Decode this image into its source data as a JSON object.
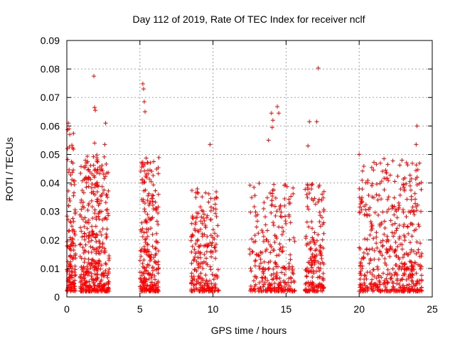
{
  "chart_data": {
    "type": "scatter",
    "title": "Day 112 of 2019, Rate Of TEC Index for receiver nclf",
    "xlabel": "GPS time / hours",
    "ylabel": "ROTI / TECUs",
    "xlim": [
      0,
      25
    ],
    "ylim": [
      0,
      0.09
    ],
    "xticks": [
      0,
      5,
      10,
      15,
      20,
      25
    ],
    "xtick_labels": [
      "0",
      "5",
      "10",
      "15",
      "20",
      "25"
    ],
    "yticks": [
      0,
      0.01,
      0.02,
      0.03,
      0.04,
      0.05,
      0.06,
      0.07,
      0.08,
      0.09
    ],
    "ytick_labels": [
      "0",
      "0.01",
      "0.02",
      "0.03",
      "0.04",
      "0.05",
      "0.06",
      "0.07",
      "0.08",
      "0.09"
    ],
    "grid": true,
    "marker": "+",
    "color": "#ff0000",
    "clusters": [
      {
        "x_start": 0.0,
        "x_end": 0.6,
        "y_max": 0.06,
        "density": 140
      },
      {
        "x_start": 0.9,
        "x_end": 2.9,
        "y_max": 0.05,
        "density": 420
      },
      {
        "x_start": 5.0,
        "x_end": 6.3,
        "y_max": 0.05,
        "density": 260
      },
      {
        "x_start": 8.5,
        "x_end": 10.4,
        "y_max": 0.04,
        "density": 230
      },
      {
        "x_start": 12.5,
        "x_end": 15.6,
        "y_max": 0.04,
        "density": 280
      },
      {
        "x_start": 16.3,
        "x_end": 17.6,
        "y_max": 0.04,
        "density": 180
      },
      {
        "x_start": 20.0,
        "x_end": 24.3,
        "y_max": 0.048,
        "density": 520
      }
    ],
    "points": [
      {
        "x": 1.85,
        "y": 0.0775
      },
      {
        "x": 17.2,
        "y": 0.0803
      },
      {
        "x": 5.2,
        "y": 0.0748
      },
      {
        "x": 5.25,
        "y": 0.073
      },
      {
        "x": 5.3,
        "y": 0.0685
      },
      {
        "x": 5.35,
        "y": 0.065
      },
      {
        "x": 1.9,
        "y": 0.0665
      },
      {
        "x": 1.95,
        "y": 0.0655
      },
      {
        "x": 2.65,
        "y": 0.061
      },
      {
        "x": 0.1,
        "y": 0.061
      },
      {
        "x": 0.15,
        "y": 0.059
      },
      {
        "x": 0.2,
        "y": 0.057
      },
      {
        "x": 14.0,
        "y": 0.0645
      },
      {
        "x": 14.1,
        "y": 0.062
      },
      {
        "x": 14.05,
        "y": 0.0595
      },
      {
        "x": 14.4,
        "y": 0.0668
      },
      {
        "x": 14.5,
        "y": 0.0645
      },
      {
        "x": 16.6,
        "y": 0.0615
      },
      {
        "x": 17.1,
        "y": 0.0615
      },
      {
        "x": 23.95,
        "y": 0.06
      },
      {
        "x": 23.9,
        "y": 0.0535
      },
      {
        "x": 2.6,
        "y": 0.0535
      },
      {
        "x": 1.9,
        "y": 0.054
      },
      {
        "x": 16.5,
        "y": 0.053
      },
      {
        "x": 9.8,
        "y": 0.0535
      },
      {
        "x": 20.0,
        "y": 0.05
      },
      {
        "x": 21.7,
        "y": 0.0485
      },
      {
        "x": 13.8,
        "y": 0.055
      }
    ]
  }
}
